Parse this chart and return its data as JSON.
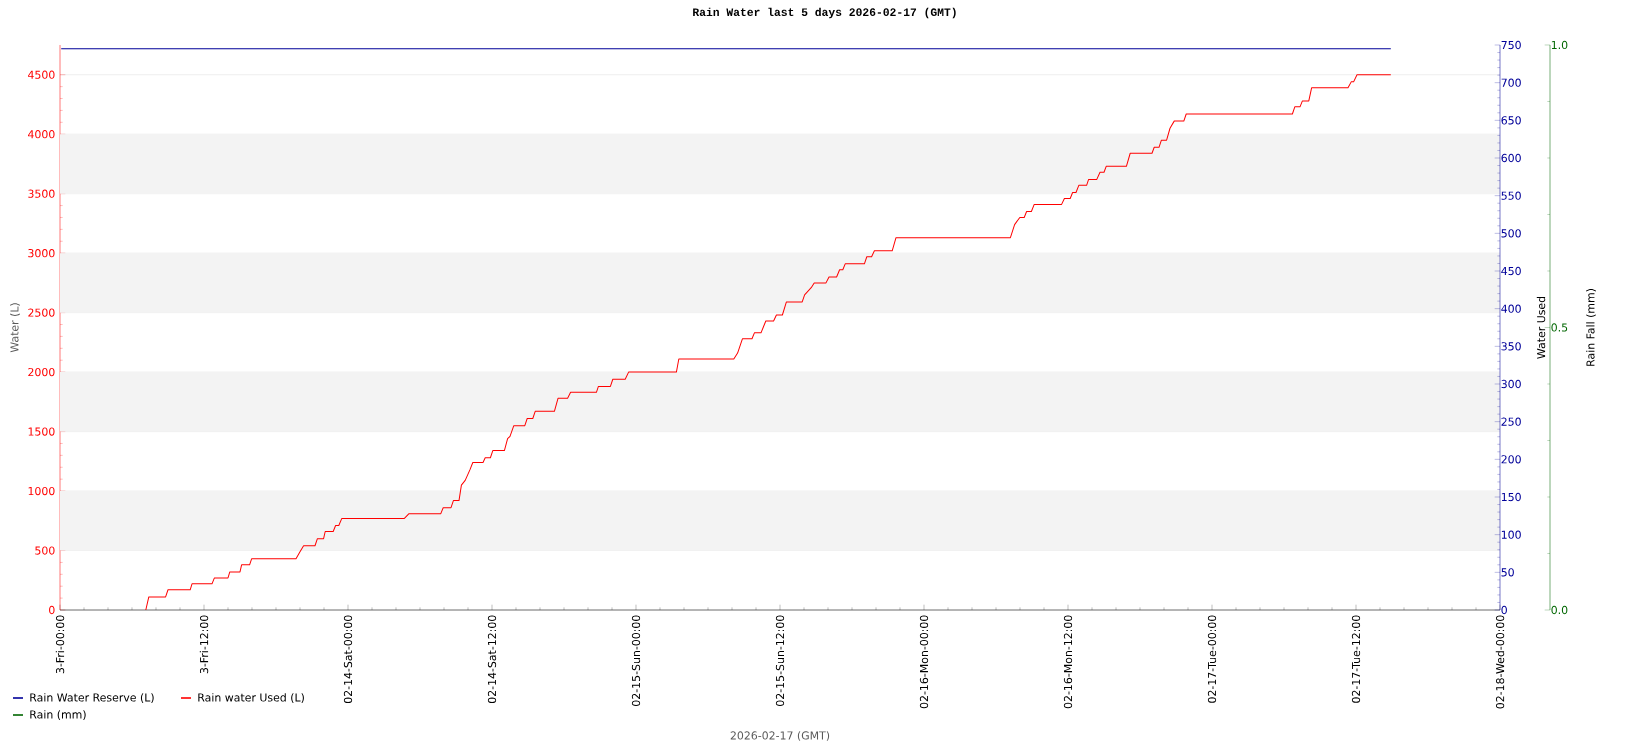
{
  "chart_data": {
    "type": "line",
    "title": "Rain Water last 5     days 2026-02-17 (GMT)",
    "xlabel": "2026-02-17 (GMT)",
    "ylabel": "Water (L)",
    "y2label": "Water Used",
    "y3label": "Rain Fall (mm)",
    "xlim": [
      "2026-02-13T00:00",
      "2026-02-18T00:00"
    ],
    "xticks": [
      {
        "value": "2026-02-13T00:00",
        "label": "3-Fri-00:00"
      },
      {
        "value": "2026-02-13T12:00",
        "label": "3-Fri-12:00"
      },
      {
        "value": "2026-02-14T00:00",
        "label": "02-14-Sat-00:00"
      },
      {
        "value": "2026-02-14T12:00",
        "label": "02-14-Sat-12:00"
      },
      {
        "value": "2026-02-15T00:00",
        "label": "02-15-Sun-00:00"
      },
      {
        "value": "2026-02-15T12:00",
        "label": "02-15-Sun-12:00"
      },
      {
        "value": "2026-02-16T00:00",
        "label": "02-16-Mon-00:00"
      },
      {
        "value": "2026-02-16T12:00",
        "label": "02-16-Mon-12:00"
      },
      {
        "value": "2026-02-17T00:00",
        "label": "02-17-Tue-00:00"
      },
      {
        "value": "2026-02-17T12:00",
        "label": "02-17-Tue-12:00"
      },
      {
        "value": "2026-02-18T00:00",
        "label": "02-18-Wed-00:00"
      }
    ],
    "ylim": [
      0,
      4750
    ],
    "yticks": [
      0,
      500,
      1000,
      1500,
      2000,
      2500,
      3000,
      3500,
      4000,
      4500
    ],
    "y2lim": [
      0,
      750
    ],
    "y2ticks": [
      0,
      50,
      100,
      150,
      200,
      250,
      300,
      350,
      400,
      450,
      500,
      550,
      600,
      650,
      700,
      750
    ],
    "y3lim": [
      0,
      1
    ],
    "y3ticks": [
      {
        "value": 0,
        "label": "0.0"
      },
      {
        "value": 0.5,
        "label": "0.5"
      },
      {
        "value": 1,
        "label": "1.0"
      }
    ],
    "grid": "y",
    "legend": "bottom left",
    "bands": [
      {
        "axis": "y",
        "from": 500,
        "to": 1000,
        "color": "#f3f3f3"
      },
      {
        "axis": "y",
        "from": 1500,
        "to": 2000,
        "color": "#f3f3f3"
      },
      {
        "axis": "y",
        "from": 2500,
        "to": 3000,
        "color": "#f3f3f3"
      },
      {
        "axis": "y",
        "from": 3500,
        "to": 4000,
        "color": "#f3f3f3"
      }
    ],
    "series": [
      {
        "name": "Rain Water Reserve (L)",
        "color": "#000099",
        "axis": "y2",
        "x": [
          "2026-02-13T00:06",
          "2026-02-14T06:00",
          "2026-02-15T12:00",
          "2026-02-16T18:00",
          "2026-02-17T14:54"
        ],
        "values": [
          745,
          745,
          745,
          745,
          745
        ]
      },
      {
        "name": "Rain water Used (L)",
        "color": "#ff0000",
        "axis": "y",
        "x": [
          "2026-02-13T07:09",
          "2026-02-13T07:24",
          "2026-02-13T08:48",
          "2026-02-13T09:00",
          "2026-02-13T10:51",
          "2026-02-13T11:00",
          "2026-02-13T12:40",
          "2026-02-13T12:52",
          "2026-02-13T14:00",
          "2026-02-13T14:09",
          "2026-02-13T15:00",
          "2026-02-13T15:08",
          "2026-02-13T15:48",
          "2026-02-13T15:58",
          "2026-02-13T19:40",
          "2026-02-13T20:00",
          "2026-02-13T20:18",
          "2026-02-13T21:15",
          "2026-02-13T21:27",
          "2026-02-13T21:58",
          "2026-02-13T22:06",
          "2026-02-13T22:46",
          "2026-02-13T22:58",
          "2026-02-13T23:14",
          "2026-02-13T23:29",
          "2026-02-14T04:42",
          "2026-02-14T05:05",
          "2026-02-14T07:44",
          "2026-02-14T07:56",
          "2026-02-14T08:35",
          "2026-02-14T08:47",
          "2026-02-14T09:15",
          "2026-02-14T09:27",
          "2026-02-14T09:46",
          "2026-02-14T10:10",
          "2026-02-14T10:24",
          "2026-02-14T11:15",
          "2026-02-14T11:26",
          "2026-02-14T11:52",
          "2026-02-14T12:04",
          "2026-02-14T13:02",
          "2026-02-14T13:18",
          "2026-02-14T13:30",
          "2026-02-14T13:49",
          "2026-02-14T14:44",
          "2026-02-14T14:56",
          "2026-02-14T15:24",
          "2026-02-14T15:36",
          "2026-02-14T17:12",
          "2026-02-14T17:30",
          "2026-02-14T18:18",
          "2026-02-14T18:33",
          "2026-02-14T20:42",
          "2026-02-14T20:52",
          "2026-02-14T21:52",
          "2026-02-14T22:04",
          "2026-02-14T23:06",
          "2026-02-14T23:23",
          "2026-02-15T03:22",
          "2026-02-15T03:34",
          "2026-02-15T08:09",
          "2026-02-15T08:28",
          "2026-02-15T08:52",
          "2026-02-15T09:40",
          "2026-02-15T09:52",
          "2026-02-15T10:25",
          "2026-02-15T10:49",
          "2026-02-15T11:28",
          "2026-02-15T11:42",
          "2026-02-15T12:12",
          "2026-02-15T12:32",
          "2026-02-15T13:51",
          "2026-02-15T14:03",
          "2026-02-15T14:36",
          "2026-02-15T14:51",
          "2026-02-15T15:50",
          "2026-02-15T16:05",
          "2026-02-15T16:43",
          "2026-02-15T16:58",
          "2026-02-15T17:14",
          "2026-02-15T17:26",
          "2026-02-15T19:02",
          "2026-02-15T19:14",
          "2026-02-15T19:38",
          "2026-02-15T19:52",
          "2026-02-15T21:21",
          "2026-02-15T21:40",
          "2026-02-16T07:12",
          "2026-02-16T07:33",
          "2026-02-16T07:59",
          "2026-02-16T08:21",
          "2026-02-16T08:33",
          "2026-02-16T08:57",
          "2026-02-16T09:11",
          "2026-02-16T11:28",
          "2026-02-16T11:42",
          "2026-02-16T12:11",
          "2026-02-16T12:23",
          "2026-02-16T12:40",
          "2026-02-16T12:54",
          "2026-02-16T13:33",
          "2026-02-16T13:43",
          "2026-02-16T14:24",
          "2026-02-16T14:40",
          "2026-02-16T15:00",
          "2026-02-16T15:11",
          "2026-02-16T16:52",
          "2026-02-16T17:11",
          "2026-02-16T19:00",
          "2026-02-16T19:11",
          "2026-02-16T19:35",
          "2026-02-16T19:47",
          "2026-02-16T20:13",
          "2026-02-16T20:30",
          "2026-02-16T20:51",
          "2026-02-16T21:39",
          "2026-02-16T21:51",
          "2026-02-17T06:42",
          "2026-02-17T06:54",
          "2026-02-17T07:20",
          "2026-02-17T07:32",
          "2026-02-17T08:04",
          "2026-02-17T08:18",
          "2026-02-17T11:20",
          "2026-02-17T11:36",
          "2026-02-17T11:48",
          "2026-02-17T12:05",
          "2026-02-17T14:54"
        ],
        "values": [
          0,
          110,
          110,
          170,
          170,
          220,
          220,
          270,
          270,
          320,
          320,
          380,
          380,
          430,
          430,
          490,
          540,
          540,
          600,
          600,
          660,
          660,
          710,
          710,
          770,
          770,
          810,
          810,
          860,
          860,
          920,
          920,
          1050,
          1090,
          1180,
          1240,
          1240,
          1280,
          1280,
          1340,
          1340,
          1440,
          1460,
          1550,
          1550,
          1610,
          1610,
          1670,
          1670,
          1780,
          1780,
          1830,
          1830,
          1880,
          1880,
          1940,
          1940,
          2000,
          2000,
          2110,
          2110,
          2160,
          2280,
          2280,
          2330,
          2330,
          2430,
          2430,
          2480,
          2480,
          2590,
          2590,
          2650,
          2710,
          2750,
          2750,
          2800,
          2800,
          2860,
          2860,
          2910,
          2910,
          2970,
          2970,
          3020,
          3020,
          3130,
          3130,
          3240,
          3300,
          3300,
          3350,
          3350,
          3410,
          3410,
          3460,
          3460,
          3510,
          3510,
          3570,
          3570,
          3620,
          3620,
          3680,
          3680,
          3730,
          3730,
          3840,
          3840,
          3890,
          3890,
          3950,
          3950,
          4050,
          4110,
          4110,
          4170,
          4170,
          4230,
          4230,
          4280,
          4280,
          4390,
          4390,
          4440,
          4440,
          4500,
          4500
        ]
      },
      {
        "name": "Rain (mm)",
        "color": "#006600",
        "axis": "y3"
      }
    ]
  }
}
